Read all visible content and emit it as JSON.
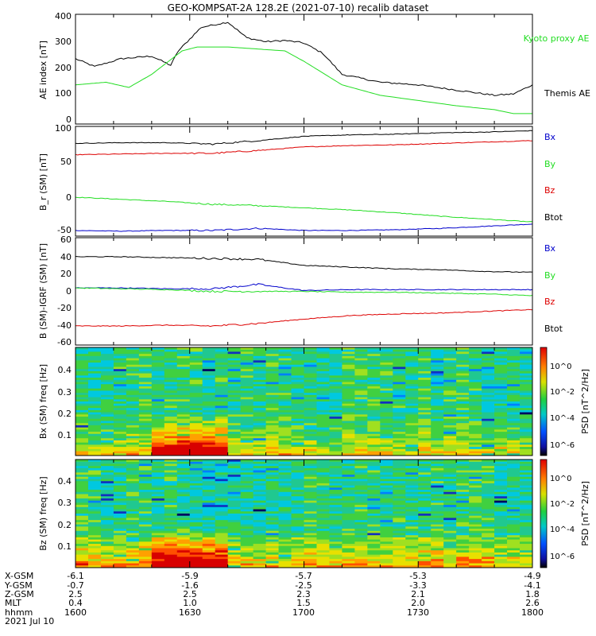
{
  "title": "GEO-KOMPSAT-2A 128.2E (2021-07-10) recalib dataset",
  "colors": {
    "black": "#000000",
    "green": "#22dd22",
    "red": "#dd0000",
    "blue": "#0000cc"
  },
  "chart_data": [
    {
      "type": "line",
      "ylabel": "AE index [nT]",
      "ylim": [
        -10,
        410
      ],
      "yticks": [
        "0",
        "100",
        "200",
        "300",
        "400"
      ],
      "legend_placement": "right",
      "x": [
        "1600",
        "1610",
        "1620",
        "1630",
        "1635",
        "1640",
        "1650",
        "1700",
        "1710",
        "1720",
        "1730",
        "1740",
        "1750",
        "1800"
      ],
      "series": [
        {
          "name": "Themis AE",
          "color": "#000000",
          "x": [
            "1600",
            "1605",
            "1612",
            "1620",
            "1625",
            "1627",
            "1633",
            "1640",
            "1645",
            "1650",
            "1655",
            "1700",
            "1705",
            "1710",
            "1720",
            "1730",
            "1740",
            "1750",
            "1755",
            "1800"
          ],
          "values": [
            240,
            210,
            240,
            250,
            215,
            270,
            360,
            380,
            320,
            305,
            310,
            300,
            260,
            180,
            150,
            140,
            120,
            100,
            105,
            140
          ]
        },
        {
          "name": "Kyoto proxy AE",
          "color": "#22dd22",
          "x": [
            "1600",
            "1608",
            "1614",
            "1620",
            "1628",
            "1632",
            "1640",
            "1650",
            "1655",
            "1700",
            "1710",
            "1720",
            "1730",
            "1740",
            "1750",
            "1755",
            "1800"
          ],
          "values": [
            140,
            150,
            130,
            180,
            270,
            285,
            285,
            275,
            270,
            230,
            140,
            100,
            80,
            60,
            45,
            30,
            30
          ]
        }
      ]
    },
    {
      "type": "line",
      "ylabel": "B_r (SM) [nT]",
      "ylim": [
        -55,
        100
      ],
      "yticks": [
        "-50",
        "0",
        "50",
        "100"
      ],
      "legend_placement": "right",
      "x_range": [
        "1600",
        "1800"
      ],
      "series": [
        {
          "name": "Bx",
          "color": "#0000cc",
          "values": [
            -47,
            -48,
            -47,
            -47,
            -44,
            -47,
            -47,
            -46,
            -44,
            -41,
            -38
          ]
        },
        {
          "name": "By",
          "color": "#22dd22",
          "values": [
            0,
            -3,
            -6,
            -10,
            -12,
            -15,
            -18,
            -22,
            -27,
            -31,
            -35
          ]
        },
        {
          "name": "Bz",
          "color": "#dd0000",
          "values": [
            60,
            61,
            62,
            62,
            66,
            71,
            73,
            74,
            76,
            78,
            80
          ]
        },
        {
          "name": "Btot",
          "color": "#000000",
          "values": [
            76,
            77,
            77,
            75,
            80,
            86,
            88,
            89,
            91,
            92,
            94
          ]
        }
      ]
    },
    {
      "type": "line",
      "ylabel": "B (SM)-IGRF (SM) [nT]",
      "ylim": [
        -62,
        62
      ],
      "yticks": [
        "-60",
        "-40",
        "-20",
        "0",
        "20",
        "40",
        "60"
      ],
      "legend_placement": "right",
      "x_range": [
        "1600",
        "1800"
      ],
      "series": [
        {
          "name": "Bx",
          "color": "#0000cc",
          "values": [
            4,
            4,
            3,
            3,
            8,
            1,
            2,
            2,
            2,
            2,
            2
          ]
        },
        {
          "name": "By",
          "color": "#22dd22",
          "values": [
            4,
            3,
            2,
            0,
            0,
            0,
            -1,
            -1,
            -2,
            -3,
            -5
          ]
        },
        {
          "name": "Bz",
          "color": "#dd0000",
          "values": [
            -40,
            -40,
            -39,
            -40,
            -37,
            -32,
            -28,
            -26,
            -25,
            -23,
            -21
          ]
        },
        {
          "name": "Btot",
          "color": "#000000",
          "values": [
            40,
            40,
            39,
            38,
            37,
            30,
            28,
            26,
            25,
            23,
            22
          ]
        }
      ]
    },
    {
      "type": "heatmap",
      "ylabel": "Bx (SM) freq [Hz]",
      "yticks": [
        "0.1",
        "0.2",
        "0.3",
        "0.4"
      ],
      "ylim": [
        0,
        0.5
      ],
      "colorbar": {
        "label": "PSD [nT^2/Hz]",
        "ticks": [
          "10^0",
          "10^-2",
          "10^-4",
          "10^-6"
        ],
        "scale": "log"
      }
    },
    {
      "type": "heatmap",
      "ylabel": "Bz (SM) freq [Hz]",
      "yticks": [
        "0.1",
        "0.2",
        "0.3",
        "0.4"
      ],
      "ylim": [
        0,
        0.5
      ],
      "colorbar": {
        "label": "PSD [nT^2/Hz]",
        "ticks": [
          "10^0",
          "10^-2",
          "10^-4",
          "10^-6"
        ],
        "scale": "log"
      }
    }
  ],
  "ephemeris": {
    "labels": [
      "X-GSM",
      "Y-GSM",
      "Z-GSM",
      "MLT",
      "hhmm",
      "2021 Jul 10"
    ],
    "columns": [
      [
        "-6.1",
        "-0.7",
        "2.5",
        "0.4",
        "1600"
      ],
      [
        "-5.9",
        "-1.6",
        "2.5",
        "1.0",
        "1630"
      ],
      [
        "-5.7",
        "-2.5",
        "2.3",
        "1.5",
        "1700"
      ],
      [
        "-5.3",
        "-3.3",
        "2.1",
        "2.0",
        "1730"
      ],
      [
        "-4.9",
        "-4.1",
        "1.8",
        "2.6",
        "1800"
      ]
    ]
  }
}
